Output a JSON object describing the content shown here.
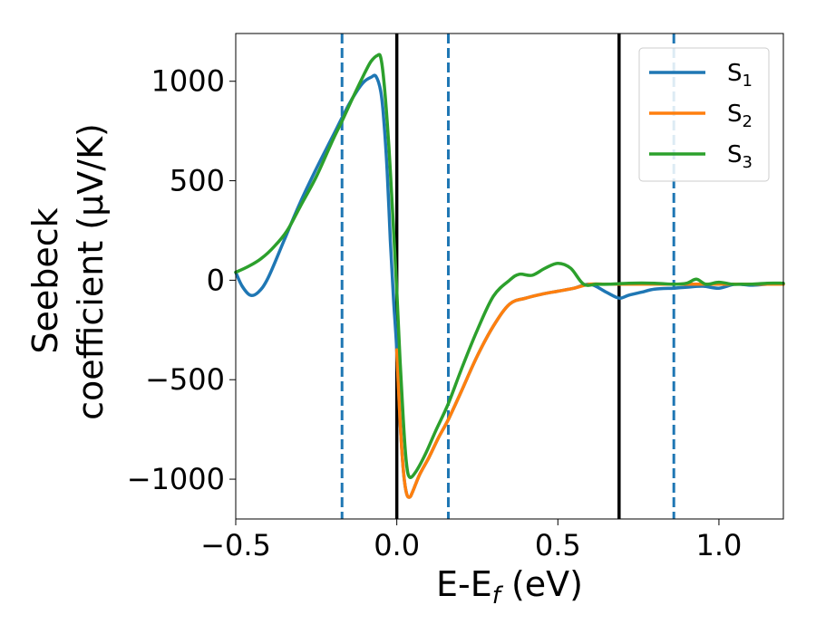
{
  "chart_data": {
    "type": "line",
    "xlabel": "E-E",
    "xlabel_sub": "f",
    "xlabel_unit": " (eV)",
    "ylabel_line1": "Seebeck",
    "ylabel_line2": "coefficient  (μV/K)",
    "xlim": [
      -0.5,
      1.2
    ],
    "ylim": [
      -1200,
      1240
    ],
    "x_ticks": [
      -0.5,
      0.0,
      0.5,
      1.0
    ],
    "x_tick_labels": [
      "−0.5",
      "0.0",
      "0.5",
      "1.0"
    ],
    "y_ticks": [
      1000,
      500,
      0,
      -500,
      -1000
    ],
    "y_tick_labels": [
      "1000",
      "500",
      "0",
      "−500",
      "−1000"
    ],
    "legend": {
      "placement": "top-right",
      "entries": [
        {
          "name": "S",
          "sub": "1",
          "color": "#1f77b4"
        },
        {
          "name": "S",
          "sub": "2",
          "color": "#ff7f0e"
        },
        {
          "name": "S",
          "sub": "3",
          "color": "#2ca02c"
        }
      ]
    },
    "vlines": [
      {
        "x": -0.17,
        "style": "dashed",
        "color": "#1f77b4"
      },
      {
        "x": 0.0,
        "style": "solid",
        "color": "#000000"
      },
      {
        "x": 0.16,
        "style": "dashed",
        "color": "#1f77b4"
      },
      {
        "x": 0.69,
        "style": "solid",
        "color": "#000000"
      },
      {
        "x": 0.86,
        "style": "dashed",
        "color": "#1f77b4"
      }
    ],
    "series": [
      {
        "name": "S1",
        "color": "#1f77b4",
        "x": [
          -0.5,
          -0.48,
          -0.455,
          -0.43,
          -0.4,
          -0.35,
          -0.3,
          -0.25,
          -0.2,
          -0.15,
          -0.12,
          -0.1,
          -0.08,
          -0.065,
          -0.05,
          -0.04,
          -0.03,
          -0.02,
          -0.01,
          0.0,
          0.01,
          0.02,
          0.03,
          0.04,
          0.05,
          0.07,
          0.1,
          0.13,
          0.16,
          0.2,
          0.25,
          0.3,
          0.35,
          0.4,
          0.45,
          0.5,
          0.55,
          0.6,
          0.65,
          0.69,
          0.72,
          0.76,
          0.8,
          0.86,
          0.9,
          0.95,
          1.0,
          1.05,
          1.1,
          1.15,
          1.2
        ],
        "y": [
          40,
          -30,
          -75,
          -60,
          10,
          200,
          390,
          560,
          720,
          880,
          960,
          1000,
          1020,
          1025,
          950,
          800,
          550,
          200,
          -100,
          -350,
          -700,
          -950,
          -1070,
          -1090,
          -1060,
          -980,
          -890,
          -790,
          -700,
          -560,
          -380,
          -230,
          -120,
          -90,
          -70,
          -55,
          -40,
          -20,
          -60,
          -90,
          -75,
          -60,
          -45,
          -40,
          -35,
          -30,
          -40,
          -20,
          -25,
          -20,
          -20
        ]
      },
      {
        "name": "S2",
        "color": "#ff7f0e",
        "x": [
          0.0,
          0.01,
          0.02,
          0.03,
          0.04,
          0.05,
          0.07,
          0.1,
          0.13,
          0.16,
          0.2,
          0.25,
          0.3,
          0.35,
          0.4,
          0.45,
          0.5,
          0.55,
          0.6,
          0.65,
          0.7,
          0.8,
          0.9,
          1.0,
          1.1,
          1.2
        ],
        "y": [
          -350,
          -700,
          -950,
          -1070,
          -1090,
          -1060,
          -980,
          -890,
          -790,
          -700,
          -560,
          -380,
          -230,
          -120,
          -90,
          -70,
          -55,
          -40,
          -20,
          -20,
          -20,
          -20,
          -20,
          -20,
          -20,
          -20
        ]
      },
      {
        "name": "S3",
        "color": "#2ca02c",
        "x": [
          -0.5,
          -0.46,
          -0.42,
          -0.38,
          -0.34,
          -0.3,
          -0.25,
          -0.2,
          -0.17,
          -0.13,
          -0.1,
          -0.08,
          -0.06,
          -0.05,
          -0.04,
          -0.03,
          -0.02,
          -0.01,
          0.0,
          0.01,
          0.02,
          0.03,
          0.04,
          0.06,
          0.09,
          0.12,
          0.16,
          0.2,
          0.25,
          0.3,
          0.35,
          0.38,
          0.42,
          0.46,
          0.5,
          0.54,
          0.58,
          0.62,
          0.66,
          0.72,
          0.8,
          0.86,
          0.9,
          0.93,
          0.96,
          1.0,
          1.04,
          1.07,
          1.1,
          1.15,
          1.2
        ],
        "y": [
          40,
          70,
          110,
          170,
          250,
          370,
          520,
          700,
          800,
          940,
          1040,
          1100,
          1130,
          1120,
          1000,
          800,
          550,
          250,
          -50,
          -400,
          -700,
          -920,
          -990,
          -960,
          -870,
          -760,
          -620,
          -450,
          -250,
          -80,
          0,
          30,
          25,
          60,
          85,
          60,
          -20,
          -20,
          -20,
          -15,
          -15,
          -20,
          -15,
          5,
          -20,
          -10,
          -20,
          -20,
          -20,
          -15,
          -15
        ]
      }
    ]
  }
}
